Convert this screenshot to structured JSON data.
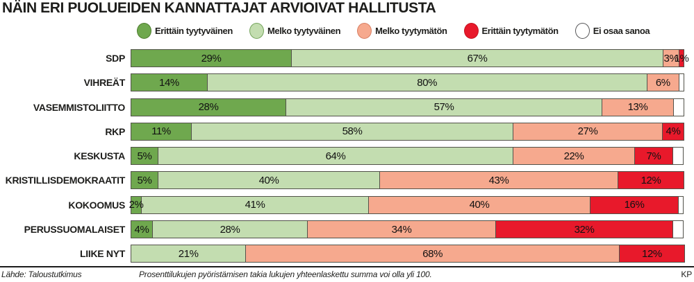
{
  "title": "NÄIN ERI PUOLUEIDEN KANNATTAJAT ARVIOIVAT HALLITUSTA",
  "colors": {
    "very_satisfied": "#6fa84e",
    "very_satisfied_border": "#4e7d2e",
    "quite_satisfied": "#c3ddb0",
    "quite_satisfied_border": "#74a45c",
    "quite_dissatisfied": "#f6a98e",
    "quite_dissatisfied_border": "#d87f63",
    "very_dissatisfied": "#e8192b",
    "very_dissatisfied_border": "#c4121f",
    "no_opinion": "#ffffff",
    "no_opinion_border": "#58585a",
    "segment_border": "#52524a"
  },
  "legend": {
    "items": [
      {
        "label": "Erittäin tyytyväinen",
        "color": "#6fa84e",
        "border": "#4e7d2e"
      },
      {
        "label": "Melko tyytyväinen",
        "color": "#c3ddb0",
        "border": "#74a45c"
      },
      {
        "label": "Melko tyytymätön",
        "color": "#f6a98e",
        "border": "#d87f63"
      },
      {
        "label": "Erittäin tyytymätön",
        "color": "#e8192b",
        "border": "#c4121f"
      },
      {
        "label": "Ei osaa sanoa",
        "color": "#ffffff",
        "border": "#58585a"
      }
    ]
  },
  "chart_data": {
    "type": "bar",
    "orientation": "horizontal_stacked",
    "unit": "%",
    "title": "NÄIN ERI PUOLUEIDEN KANNATTAJAT ARVIOIVAT HALLITUSTA",
    "categories": [
      "SDP",
      "VIHREÄT",
      "VASEMMISTOLIITTO",
      "RKP",
      "KESKUSTA",
      "KRISTILLISDEMOKRAATIT",
      "KOKOOMUS",
      "PERUSSUOMALAISET",
      "LIIKE NYT"
    ],
    "series": [
      {
        "name": "Erittäin tyytyväinen",
        "color": "#6fa84e",
        "labeled": true,
        "values": [
          29,
          14,
          28,
          11,
          5,
          5,
          2,
          4,
          0
        ]
      },
      {
        "name": "Melko tyytyväinen",
        "color": "#c3ddb0",
        "labeled": true,
        "values": [
          67,
          80,
          57,
          58,
          64,
          40,
          41,
          28,
          21
        ]
      },
      {
        "name": "Melko tyytymätön",
        "color": "#f6a98e",
        "labeled": true,
        "values": [
          3,
          6,
          13,
          27,
          22,
          43,
          40,
          34,
          68
        ]
      },
      {
        "name": "Erittäin tyytymätön",
        "color": "#e8192b",
        "labeled": true,
        "values": [
          1,
          0,
          0,
          4,
          7,
          12,
          16,
          32,
          12
        ]
      },
      {
        "name": "Ei osaa sanoa",
        "color": "#ffffff",
        "labeled": false,
        "values": [
          0,
          1,
          2,
          0,
          2,
          0,
          1,
          2,
          0
        ]
      }
    ],
    "legend_position": "top",
    "grid": false
  },
  "footer": {
    "source": "Lähde: Taloustutkimus",
    "note": "Prosenttilukujen pyöristämisen takia lukujen yhteenlaskettu summa voi olla yli 100.",
    "credit": "KP"
  }
}
